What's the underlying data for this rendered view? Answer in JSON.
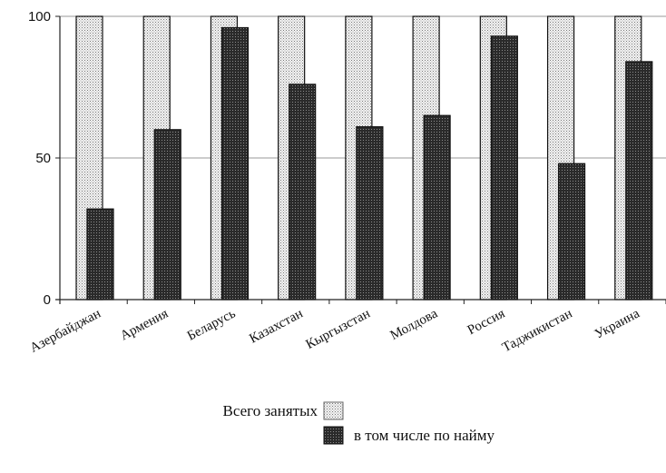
{
  "chart_data": {
    "type": "bar",
    "title": "",
    "xlabel": "",
    "ylabel": "",
    "ylim": [
      0,
      100
    ],
    "yticks": [
      0,
      50,
      100
    ],
    "grid": true,
    "legend_position": "bottom",
    "categories": [
      "Азербайджан",
      "Армения",
      "Беларусь",
      "Казахстан",
      "Кыргызстан",
      "Молдова",
      "Россия",
      "Таджикистан",
      "Украина"
    ],
    "series": [
      {
        "name": "Всего занятых",
        "values": [
          100,
          100,
          100,
          100,
          100,
          100,
          100,
          100,
          100
        ],
        "pattern": "light-dots",
        "color": "#d9d9d9"
      },
      {
        "name": "в том числе по найму",
        "values": [
          32,
          60,
          96,
          76,
          61,
          65,
          93,
          48,
          84
        ],
        "pattern": "dark-dots",
        "color": "#3a3a3a"
      }
    ]
  }
}
